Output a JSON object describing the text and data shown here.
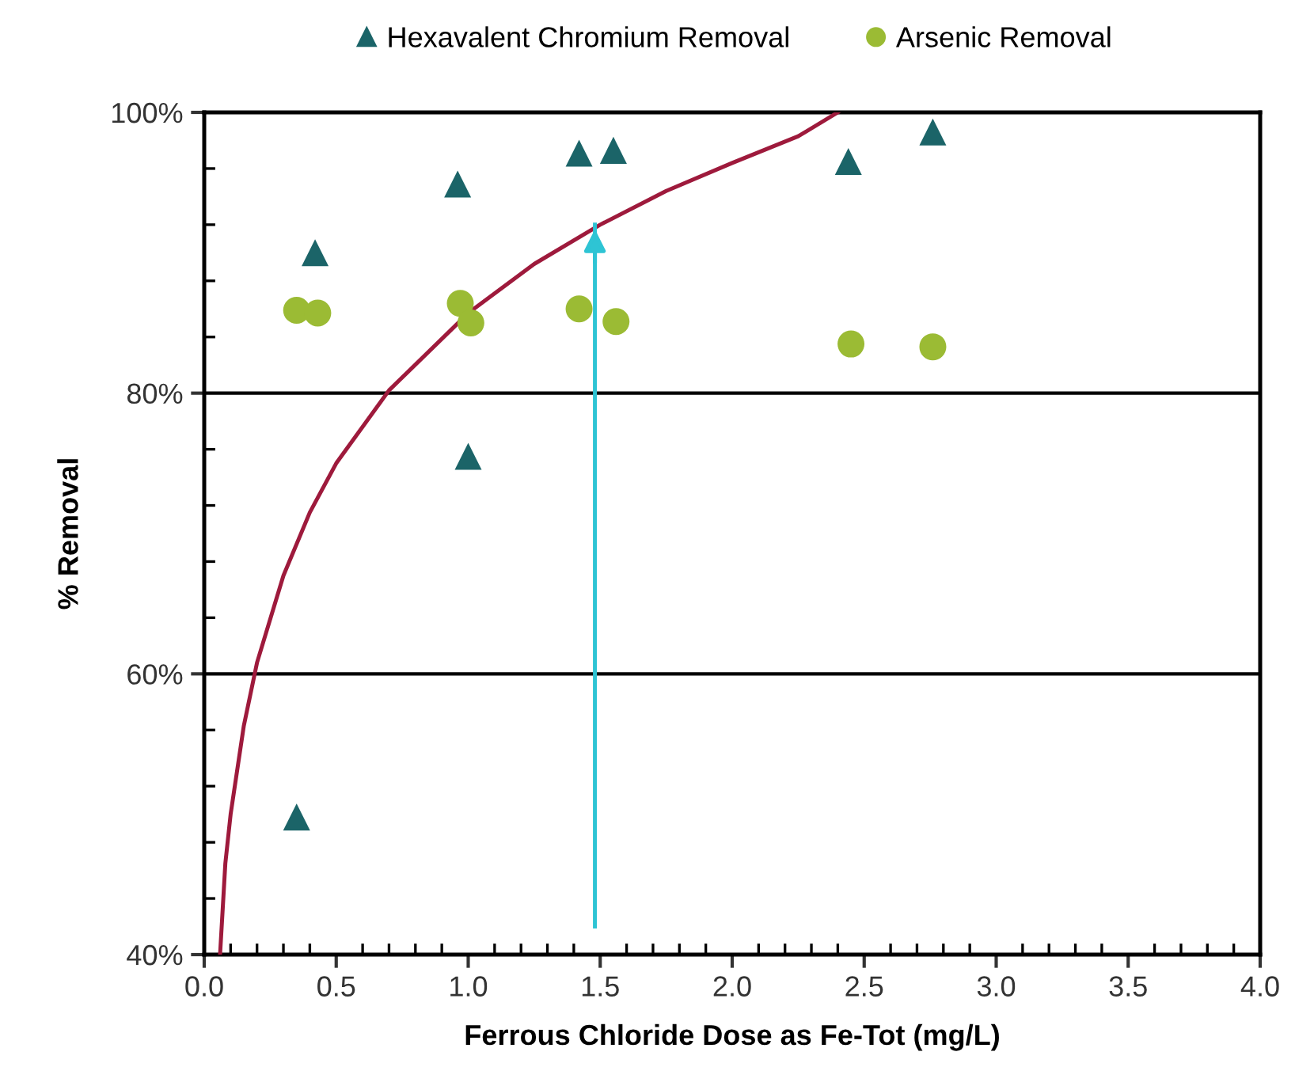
{
  "chart_data": {
    "type": "scatter",
    "xlabel": "Ferrous Chloride Dose as Fe-Tot (mg/L)",
    "ylabel": "% Removal",
    "xlim": [
      0,
      4
    ],
    "ylim": [
      40,
      100
    ],
    "xticks": [
      {
        "value": 0,
        "label": "0.0"
      },
      {
        "value": 0.5,
        "label": "0.5"
      },
      {
        "value": 1,
        "label": "1.0"
      },
      {
        "value": 1.5,
        "label": "1.5"
      },
      {
        "value": 2,
        "label": "2.0"
      },
      {
        "value": 2.5,
        "label": "2.5"
      },
      {
        "value": 3,
        "label": "3.0"
      },
      {
        "value": 3.5,
        "label": "3.5"
      },
      {
        "value": 4,
        "label": "4.0"
      }
    ],
    "yticks": [
      {
        "value": 40,
        "label": "40%"
      },
      {
        "value": 60,
        "label": "60%"
      },
      {
        "value": 80,
        "label": "80%"
      },
      {
        "value": 100,
        "label": "100%"
      }
    ],
    "grid": "y",
    "legend": "top",
    "series": [
      {
        "name": "Hexavalent Chromium Removal",
        "marker": "triangle",
        "color": "#1b6468",
        "x": [
          0.35,
          0.42,
          0.96,
          1.0,
          1.42,
          1.55,
          2.44,
          2.76
        ],
        "values": [
          49.8,
          90.0,
          94.9,
          75.5,
          97.1,
          97.3,
          96.5,
          98.6
        ]
      },
      {
        "name": "Arsenic Removal",
        "marker": "circle",
        "color": "#9bbb34",
        "x": [
          0.35,
          0.43,
          0.97,
          1.01,
          1.42,
          1.56,
          2.45,
          2.76
        ],
        "values": [
          85.9,
          85.7,
          86.4,
          85.0,
          86.0,
          85.1,
          83.5,
          83.3
        ]
      },
      {
        "type": "line",
        "color": "#9e1a3c",
        "x": [
          0.06,
          0.08,
          0.1,
          0.15,
          0.2,
          0.3,
          0.4,
          0.5,
          0.7,
          1.0,
          1.25,
          1.5,
          1.75,
          2.0,
          2.25,
          2.4
        ],
        "values": [
          40,
          46.5,
          50,
          56.3,
          60.8,
          67,
          71.5,
          75,
          80.2,
          85.7,
          89.2,
          92,
          94.4,
          96.4,
          98.3,
          100
        ]
      },
      {
        "type": "line",
        "color": "#2ec4d4",
        "x": [
          1.48,
          1.48
        ],
        "values": [
          42,
          92
        ]
      }
    ]
  }
}
